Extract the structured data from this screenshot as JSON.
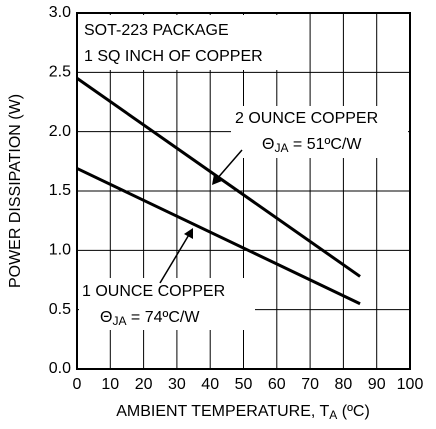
{
  "chart_data": {
    "type": "line",
    "notes": [
      "SOT-223 PACKAGE",
      "1 SQ INCH OF COPPER"
    ],
    "xlabel": [
      "AMBIENT TEMPERATURE, T",
      "A",
      " (ºC)"
    ],
    "ylabel": "POWER DISSIPATION (W)",
    "x": [
      0,
      85
    ],
    "series": [
      {
        "name": "2 OUNCE COPPER",
        "theta": [
          "Θ",
          "JA",
          " = 51ºC/W"
        ],
        "color": "#000000",
        "values": [
          2.45,
          0.78
        ]
      },
      {
        "name": "1 OUNCE COPPER",
        "theta": [
          "Θ",
          "JA",
          " = 74ºC/W"
        ],
        "color": "#000000",
        "values": [
          1.69,
          0.55
        ]
      }
    ],
    "xlim": [
      0,
      100
    ],
    "xticks": [
      0,
      10,
      20,
      30,
      40,
      50,
      60,
      70,
      80,
      90,
      100
    ],
    "ylim": [
      0,
      3
    ],
    "yticks": [
      {
        "value": 0,
        "label": "0.0"
      },
      0.5,
      {
        "value": 1,
        "label": "1.0"
      },
      1.5,
      {
        "value": 2,
        "label": "2.0"
      },
      2.5,
      {
        "value": 3,
        "label": "3.0"
      }
    ],
    "grid": true
  }
}
